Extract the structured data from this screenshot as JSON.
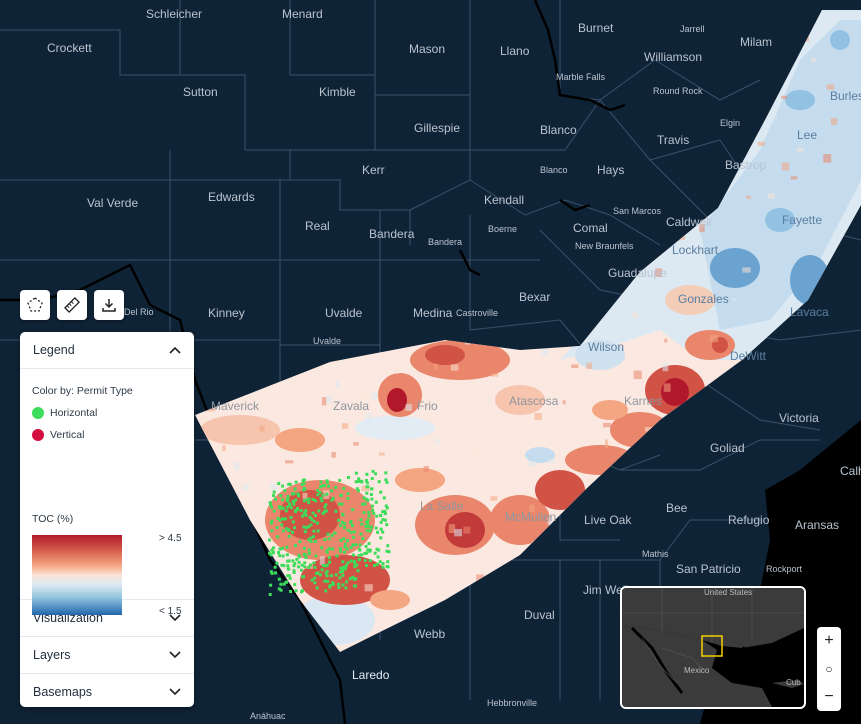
{
  "toolbar": {
    "draw_polygon": "polygon-draw-icon",
    "measure": "ruler-icon",
    "download": "download-icon"
  },
  "legend": {
    "title": "Legend",
    "color_by": "Color by: Permit Type",
    "items": [
      {
        "label": "Horizontal",
        "color": "#3ddc5a"
      },
      {
        "label": "Vertical",
        "color": "#d5103f"
      }
    ],
    "toc_title": "TOC (%)",
    "toc_high": "> 4.5",
    "toc_low": "< 1.5",
    "gradient_colors": [
      "#b2182b",
      "#f4a582",
      "#fbe3d6",
      "#92c5de",
      "#2166ac"
    ]
  },
  "sections": {
    "visualization": "Visualization",
    "layers": "Layers",
    "basemaps": "Basemaps"
  },
  "map_labels": [
    "Schleicher",
    "Menard",
    "Burnet",
    "Jarrell",
    "Milam",
    "Crockett",
    "Mason",
    "Llano",
    "Williamson",
    "Marble Falls",
    "Round Rock",
    "Burleson",
    "Sutton",
    "Kimble",
    "Gillespie",
    "Blanco",
    "Travis",
    "Elgin",
    "Lee",
    "Kerr",
    "Blanco",
    "Hays",
    "Bastrop",
    "Val Verde",
    "Edwards",
    "Kendall",
    "San Marcos",
    "Caldwell",
    "Fayette",
    "Real",
    "Bandera",
    "Bandera",
    "Boerne",
    "Comal",
    "New Braunfels",
    "Lockhart",
    "Guadalupe",
    "Bexar",
    "Gonzales",
    "Lavaca",
    "Del Rio",
    "Kinney",
    "Uvalde",
    "Medina",
    "Castroville",
    "Uvalde",
    "Wilson",
    "DeWitt",
    "Maverick",
    "Zavala",
    "Frio",
    "Atascosa",
    "Karnes",
    "Victoria",
    "Goliad",
    "La Salle",
    "McMullen",
    "Live Oak",
    "Bee",
    "Refugio",
    "Aransas",
    "Calh",
    "Mathis",
    "San Patricio",
    "Rockport",
    "Jim Wells",
    "Duval",
    "Webb",
    "Laredo",
    "Hebbronville",
    "Anáhuac"
  ],
  "minimap": {
    "country_us": "United States",
    "country_mx": "Mexico",
    "cuba": "Cub"
  },
  "zoom": {
    "in": "+",
    "reset": "○",
    "out": "−"
  }
}
